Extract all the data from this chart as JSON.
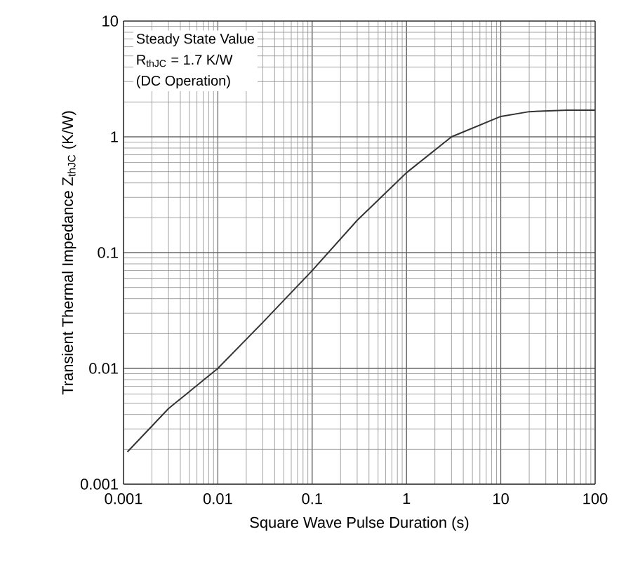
{
  "chart_data": {
    "type": "line",
    "xlabel": "Square Wave Pulse Duration (s)",
    "ylabel": "Transient Thermal Impedance Z$_{thJC}$ (K/W)",
    "annotations": [
      "Steady State Value",
      "R$_{thJC}$ = 1.7 K/W",
      "(DC Operation)"
    ],
    "log": "xy",
    "grid": true,
    "marker": "none",
    "line_style": "solid",
    "xlim": [
      0.001,
      100
    ],
    "ylim": [
      0.001,
      10
    ],
    "xticks": [
      0.001,
      0.01,
      0.1,
      1,
      10,
      100
    ],
    "yticks": [
      0.001,
      0.01,
      0.1,
      1,
      10
    ],
    "x": [
      0.0011,
      0.003,
      0.01,
      0.03,
      0.1,
      0.3,
      1,
      3,
      10,
      20,
      50,
      100
    ],
    "series": [
      {
        "color": "#333333",
        "values": [
          0.0019,
          0.0045,
          0.01,
          0.025,
          0.07,
          0.19,
          0.49,
          1.0,
          1.5,
          1.65,
          1.7,
          1.7
        ]
      }
    ]
  }
}
